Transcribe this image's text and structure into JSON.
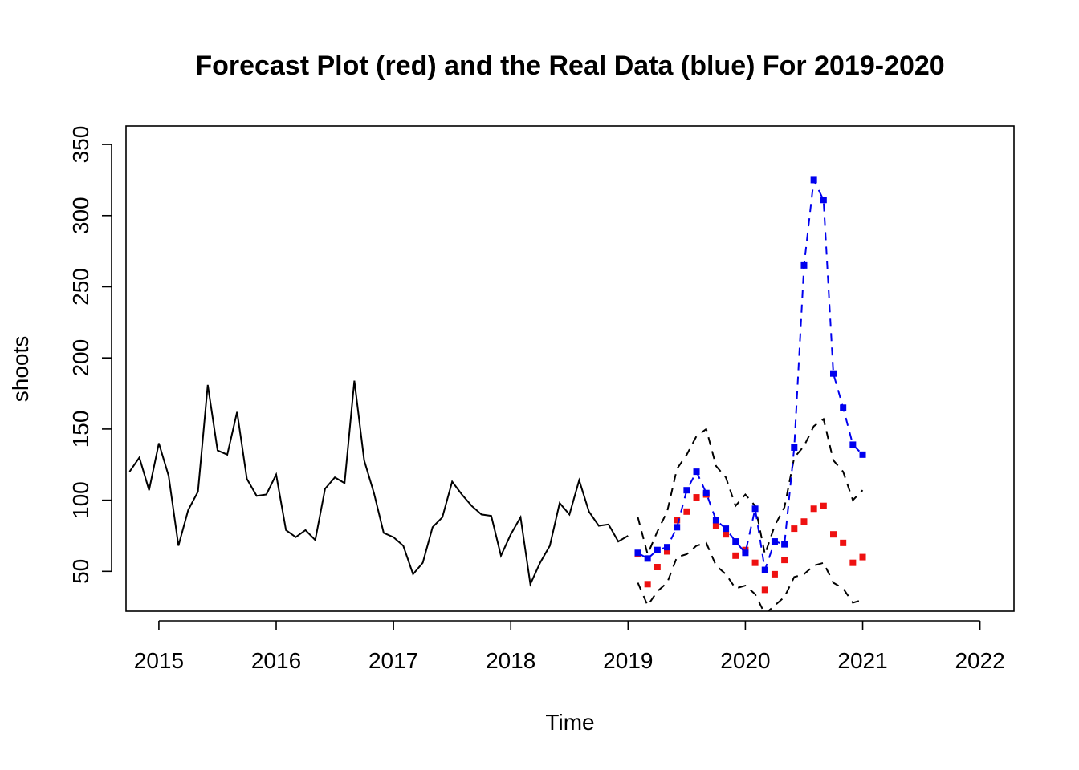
{
  "chart_data": {
    "type": "line",
    "title": "Forecast Plot (red) and the Real Data (blue) For 2019-2020",
    "xlabel": "Time",
    "ylabel": "shoots",
    "xlim": [
      2014.72,
      2022.29
    ],
    "ylim": [
      22,
      363
    ],
    "x_ticks": [
      2015,
      2016,
      2017,
      2018,
      2019,
      2020,
      2021,
      2022
    ],
    "x_tick_labels": [
      "2015",
      "2016",
      "2017",
      "2018",
      "2019",
      "2020",
      "2021",
      "2022"
    ],
    "y_ticks": [
      50,
      100,
      150,
      200,
      250,
      300,
      350
    ],
    "y_tick_labels": [
      "50",
      "100",
      "150",
      "200",
      "250",
      "300",
      "350"
    ],
    "grid": false,
    "legend": "none",
    "colors": {
      "history": "#000000",
      "bounds": "#000000",
      "forecast": "#ee1111",
      "real": "#0000ee"
    },
    "series": [
      {
        "start": 2014.75,
        "values": [
          120,
          130,
          107,
          140,
          117,
          68,
          93,
          106,
          181,
          135,
          132,
          162,
          115,
          103,
          104,
          118,
          79,
          74,
          79,
          72,
          108,
          116,
          112,
          184,
          128,
          105,
          77,
          74,
          68,
          48,
          56,
          81,
          88,
          113,
          104,
          96,
          90,
          89,
          61,
          76,
          88,
          41,
          56,
          68,
          98,
          90,
          114,
          92,
          82,
          83,
          71,
          75
        ]
      },
      {
        "start": 2019.0833,
        "values": [
          88,
          62,
          78,
          92,
          122,
          132,
          145,
          150,
          124,
          116,
          96,
          104,
          96,
          62,
          82,
          95,
          130,
          138,
          152,
          157,
          128,
          120,
          100,
          107
        ]
      },
      {
        "start": 2019.0833,
        "values": [
          42,
          26,
          36,
          42,
          60,
          62,
          68,
          70,
          54,
          48,
          38,
          40,
          34,
          20,
          26,
          32,
          46,
          48,
          54,
          56,
          42,
          38,
          28,
          30
        ]
      },
      {
        "start": 2019.0833,
        "values": [
          62,
          41,
          53,
          64,
          86,
          92,
          102,
          104,
          82,
          76,
          61,
          65,
          56,
          37,
          48,
          58,
          80,
          85,
          94,
          96,
          76,
          70,
          56,
          60
        ]
      },
      {
        "start": 2019.0833,
        "values": [
          63,
          59,
          65,
          67,
          81,
          107,
          120,
          105,
          86,
          80,
          71,
          63,
          94,
          51,
          71,
          69,
          137,
          265,
          325,
          311,
          189,
          165,
          139,
          132
        ]
      }
    ]
  }
}
